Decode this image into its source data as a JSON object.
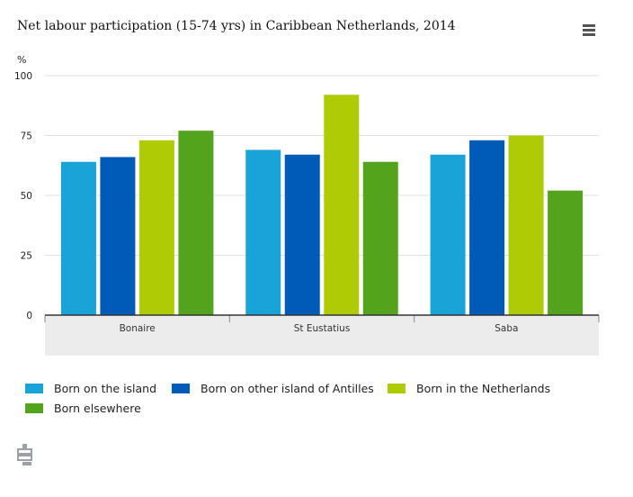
{
  "header": {
    "title": "Net labour participation (15-74 yrs) in Caribbean Netherlands, 2014",
    "menu_icon": "hamburger-menu-icon"
  },
  "chart_data": {
    "type": "bar",
    "title": "Net labour participation (15-74 yrs) in Caribbean Netherlands, 2014",
    "ylabel": "%",
    "xlabel": "",
    "ylim": [
      0,
      100
    ],
    "yticks": [
      0,
      25,
      50,
      75,
      100
    ],
    "categories": [
      "Bonaire",
      "St Eustatius",
      "Saba"
    ],
    "series": [
      {
        "name": "Born on the island",
        "color": "#1aa3d6",
        "values": [
          64,
          69,
          67
        ]
      },
      {
        "name": "Born on other island of Antilles",
        "color": "#005ab8",
        "values": [
          66,
          67,
          73
        ]
      },
      {
        "name": "Born in the Netherlands",
        "color": "#afcb05",
        "values": [
          73,
          92,
          75
        ]
      },
      {
        "name": "Born elsewhere",
        "color": "#53a31d",
        "values": [
          77,
          64,
          52
        ]
      }
    ],
    "grid": true,
    "legend": "bottom"
  },
  "footer": {
    "logo_icon": "cbs-logo-icon"
  }
}
